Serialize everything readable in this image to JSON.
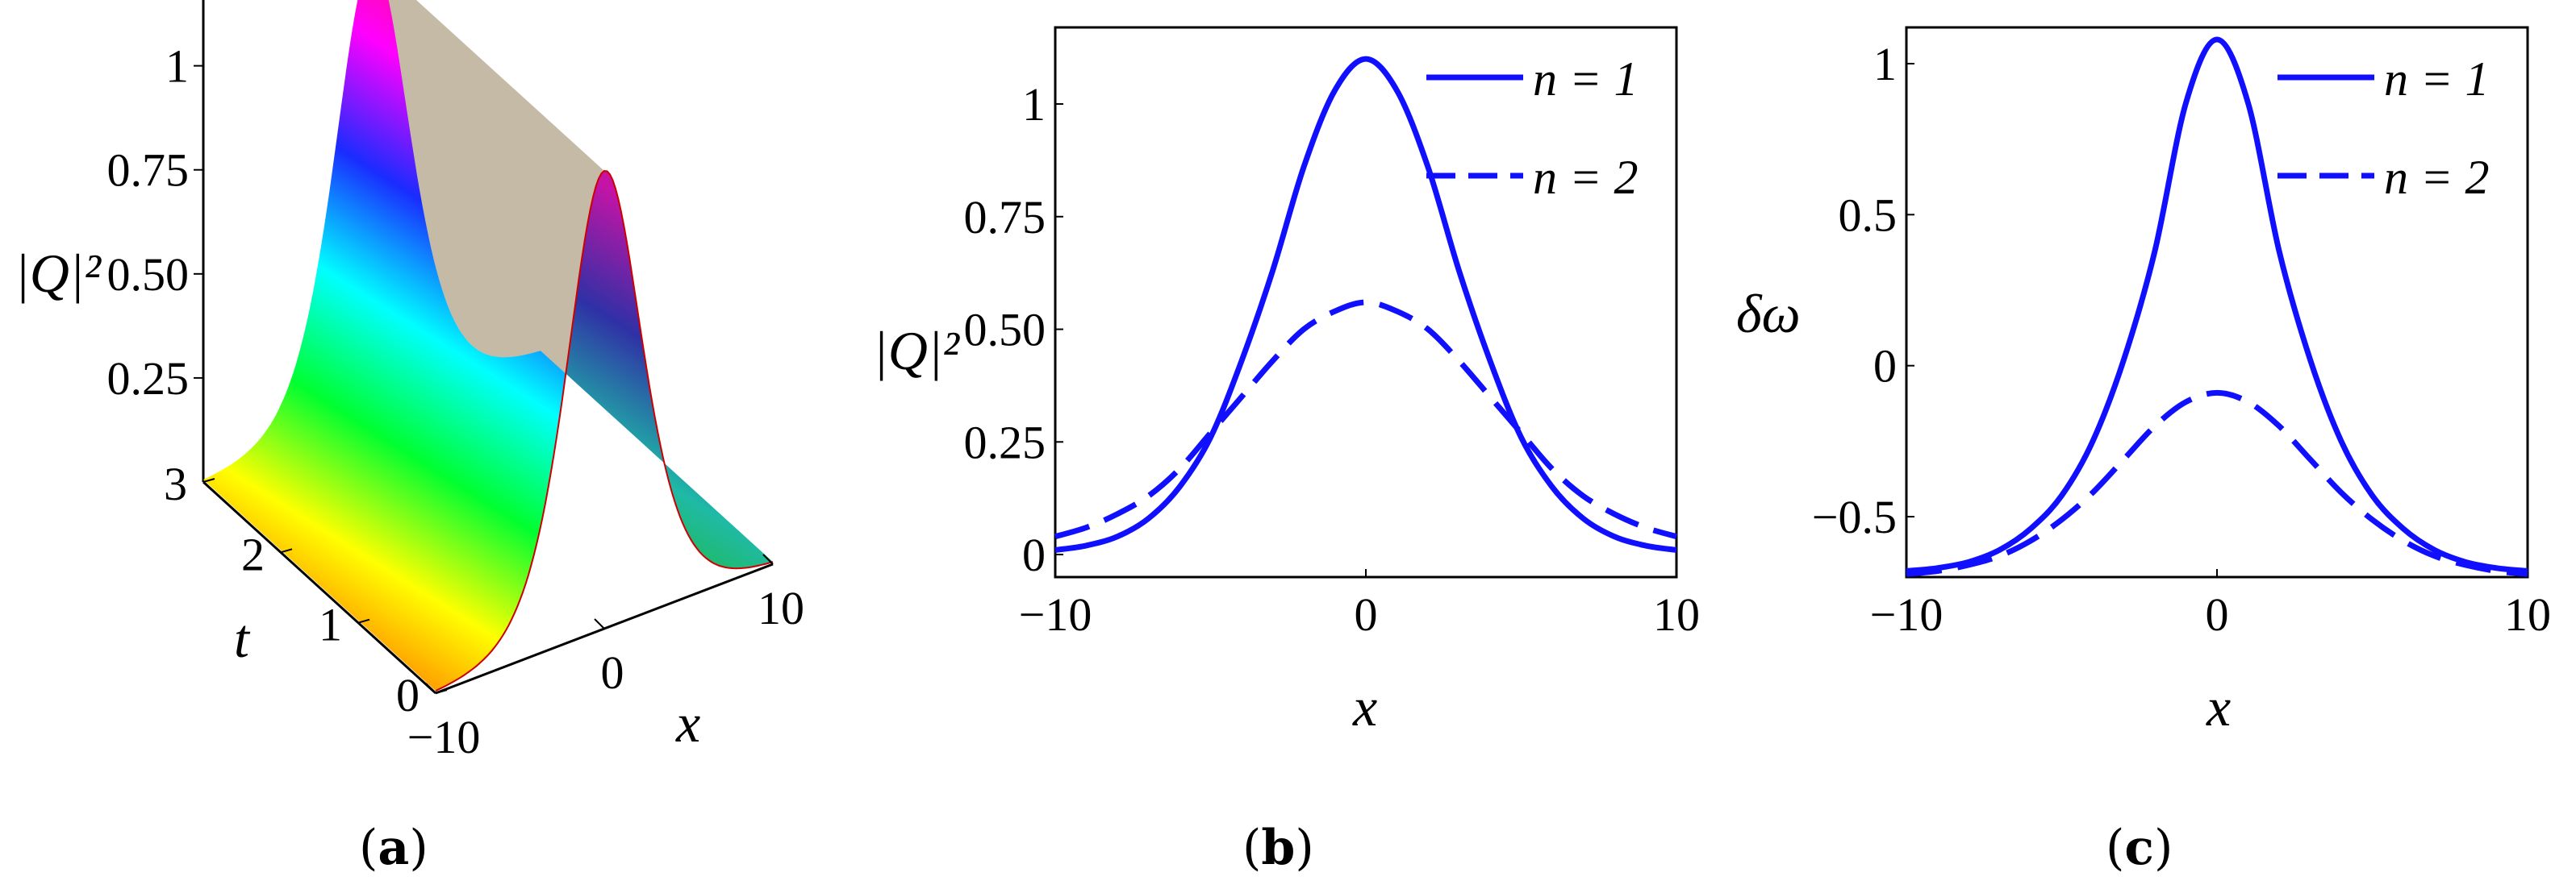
{
  "chart_data": [
    {
      "type": "surface",
      "caption": "a",
      "zlabel": "|Q|²",
      "xlabel": "x",
      "ylabel": "t",
      "x_ticks": [
        "−10",
        "0",
        "10"
      ],
      "t_ticks": [
        "0",
        "1",
        "2",
        "3"
      ],
      "z_ticks": [
        "0.25",
        "0.50",
        "0.75",
        "1"
      ],
      "xlim": [
        -10,
        10
      ],
      "tlim": [
        0,
        3
      ],
      "peak": 1.1,
      "width": 3.0
    },
    {
      "type": "line",
      "caption": "b",
      "xlabel": "x",
      "ylabel": "|Q|²",
      "xlim": [
        -10,
        10
      ],
      "ylim": [
        -0.05,
        1.17
      ],
      "x_ticks": [
        "−10",
        "0",
        "10"
      ],
      "y_ticks": [
        "0",
        "0.25",
        "0.50",
        "0.75",
        "1"
      ],
      "legend_position": "top-right",
      "series": [
        {
          "name": "n = 1",
          "style": "solid",
          "x": [
            -10,
            -9,
            -8,
            -7,
            -6,
            -5,
            -4,
            -3,
            -2,
            -1,
            0,
            1,
            2,
            3,
            4,
            5,
            6,
            7,
            8,
            9,
            10
          ],
          "y": [
            0.01,
            0.02,
            0.04,
            0.08,
            0.15,
            0.26,
            0.43,
            0.63,
            0.86,
            1.03,
            1.1,
            1.03,
            0.86,
            0.63,
            0.43,
            0.26,
            0.15,
            0.08,
            0.04,
            0.02,
            0.01
          ]
        },
        {
          "name": "n = 2",
          "style": "dashed",
          "x": [
            -10,
            -9,
            -8,
            -7,
            -6,
            -5,
            -4,
            -3,
            -2,
            -1,
            0,
            1,
            2,
            3,
            4,
            5,
            6,
            7,
            8,
            9,
            10
          ],
          "y": [
            0.04,
            0.06,
            0.09,
            0.13,
            0.19,
            0.27,
            0.35,
            0.43,
            0.5,
            0.54,
            0.56,
            0.54,
            0.5,
            0.43,
            0.35,
            0.27,
            0.19,
            0.13,
            0.09,
            0.06,
            0.04
          ]
        }
      ]
    },
    {
      "type": "line",
      "caption": "c",
      "xlabel": "x",
      "ylabel": "δω",
      "xlim": [
        -10,
        10
      ],
      "ylim": [
        -0.7,
        1.12
      ],
      "x_ticks": [
        "−10",
        "0",
        "10"
      ],
      "y_ticks": [
        "−0.5",
        "0",
        "0.5",
        "1"
      ],
      "legend_position": "top-right",
      "series": [
        {
          "name": "n = 1",
          "style": "solid",
          "x": [
            -10,
            -9,
            -8,
            -7,
            -6,
            -5,
            -4,
            -3,
            -2,
            -1,
            0,
            1,
            2,
            3,
            4,
            5,
            6,
            7,
            8,
            9,
            10
          ],
          "y": [
            -0.68,
            -0.67,
            -0.65,
            -0.61,
            -0.54,
            -0.43,
            -0.25,
            0.02,
            0.38,
            0.87,
            1.08,
            0.87,
            0.38,
            0.02,
            -0.25,
            -0.43,
            -0.54,
            -0.61,
            -0.65,
            -0.67,
            -0.68
          ]
        },
        {
          "name": "n = 2",
          "style": "dashed",
          "x": [
            -10,
            -9,
            -8,
            -7,
            -6,
            -5,
            -4,
            -3,
            -2,
            -1,
            0,
            1,
            2,
            3,
            4,
            5,
            6,
            7,
            8,
            9,
            10
          ],
          "y": [
            -0.69,
            -0.68,
            -0.66,
            -0.63,
            -0.58,
            -0.51,
            -0.42,
            -0.31,
            -0.2,
            -0.12,
            -0.09,
            -0.12,
            -0.2,
            -0.31,
            -0.42,
            -0.51,
            -0.58,
            -0.63,
            -0.66,
            -0.68,
            -0.69
          ]
        }
      ]
    }
  ]
}
